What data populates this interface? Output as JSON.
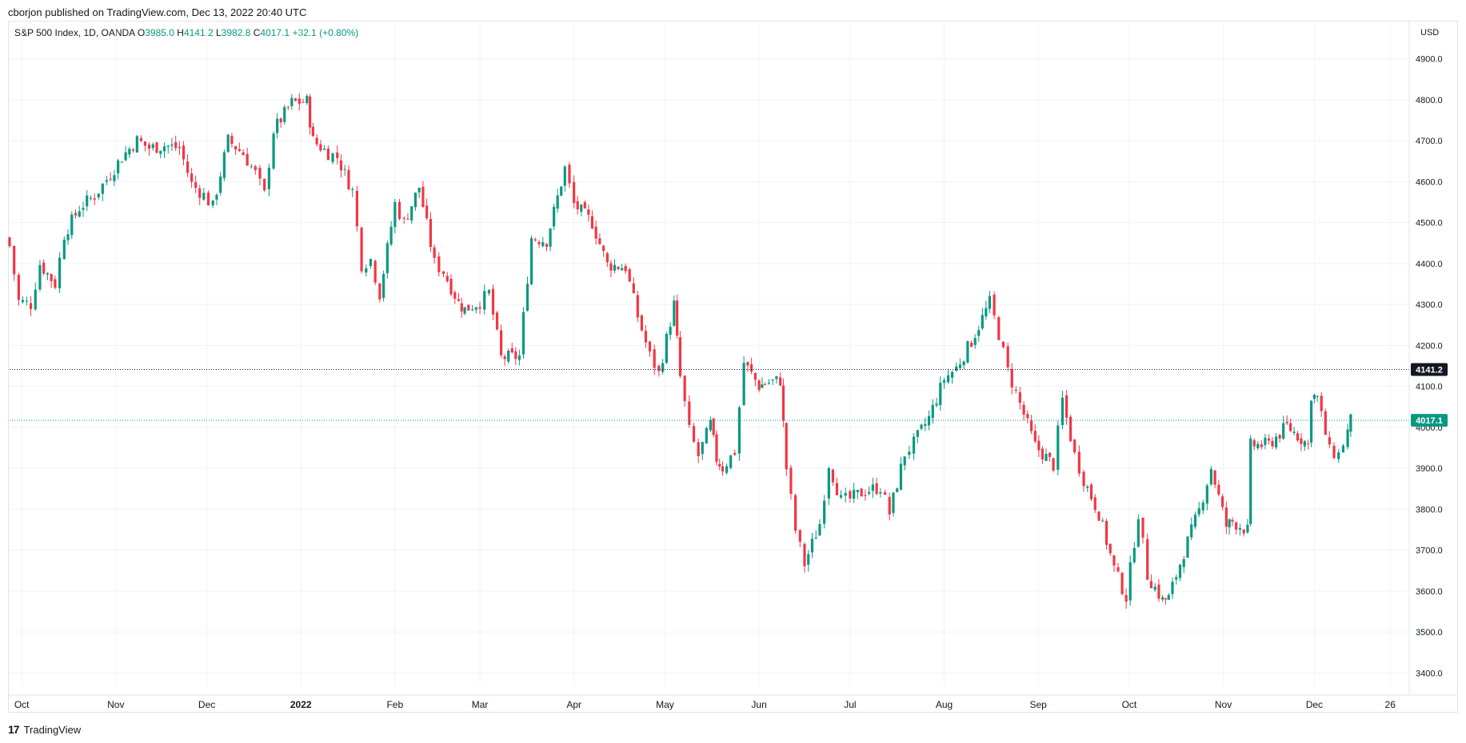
{
  "header": {
    "published": "cborjon published on TradingView.com, Dec 13, 2022 20:40 UTC"
  },
  "legend": {
    "symbol": "S&P 500 Index, 1D, OANDA",
    "o_label": "O",
    "o_value": "3985.0",
    "h_label": "H",
    "h_value": "4141.2",
    "l_label": "L",
    "l_value": "3982.8",
    "c_label": "C",
    "c_value": "4017.1",
    "change": "+32.1 (+0.80%)"
  },
  "footer": {
    "logo": "17",
    "brand": "TradingView"
  },
  "colors": {
    "up": "#089981",
    "down": "#f23645",
    "grid": "#f0f3fa",
    "axis_text": "#131722",
    "last_price": "#089981",
    "high_line": "#131722"
  },
  "chart_data": {
    "type": "candlestick",
    "currency": "USD",
    "ylim": [
      3350,
      4985
    ],
    "y_ticks": [
      "4900.0",
      "4800.0",
      "4700.0",
      "4600.0",
      "4500.0",
      "4400.0",
      "4300.0",
      "4200.0",
      "4100.0",
      "4000.0",
      "3900.0",
      "3800.0",
      "3700.0",
      "3600.0",
      "3500.0",
      "3400.0"
    ],
    "x_ticks": [
      "Oct",
      "Nov",
      "Dec",
      "2022",
      "Feb",
      "Mar",
      "Apr",
      "May",
      "Jun",
      "Jul",
      "Aug",
      "Sep",
      "Oct",
      "Nov",
      "Dec",
      "26"
    ],
    "x_range": [
      "2021-09-27",
      "2022-12-27"
    ],
    "x_tick_dates": [
      "2021-10-01",
      "2021-11-01",
      "2021-12-01",
      "2022-01-01",
      "2022-02-01",
      "2022-03-01",
      "2022-04-01",
      "2022-05-01",
      "2022-06-01",
      "2022-07-01",
      "2022-08-01",
      "2022-09-01",
      "2022-10-01",
      "2022-11-01",
      "2022-12-01",
      "2022-12-26"
    ],
    "last_price": "4017.1",
    "high_price": "4141.2",
    "closes": [
      [
        "2021-09-27",
        4443
      ],
      [
        "2021-09-30",
        4308
      ],
      [
        "2021-10-04",
        4300
      ],
      [
        "2021-10-07",
        4399
      ],
      [
        "2021-10-12",
        4350
      ],
      [
        "2021-10-15",
        4471
      ],
      [
        "2021-10-20",
        4536
      ],
      [
        "2021-10-25",
        4566
      ],
      [
        "2021-10-29",
        4605
      ],
      [
        "2021-11-03",
        4660
      ],
      [
        "2021-11-08",
        4701
      ],
      [
        "2021-11-12",
        4682
      ],
      [
        "2021-11-17",
        4688
      ],
      [
        "2021-11-22",
        4682
      ],
      [
        "2021-11-26",
        4594
      ],
      [
        "2021-11-30",
        4567
      ],
      [
        "2021-12-03",
        4538
      ],
      [
        "2021-12-08",
        4701
      ],
      [
        "2021-12-13",
        4668
      ],
      [
        "2021-12-17",
        4620
      ],
      [
        "2021-12-20",
        4568
      ],
      [
        "2021-12-23",
        4725
      ],
      [
        "2021-12-29",
        4793
      ],
      [
        "2022-01-03",
        4796
      ],
      [
        "2022-01-05",
        4700
      ],
      [
        "2022-01-10",
        4670
      ],
      [
        "2022-01-13",
        4660
      ],
      [
        "2022-01-18",
        4577
      ],
      [
        "2022-01-21",
        4398
      ],
      [
        "2022-01-24",
        4410
      ],
      [
        "2022-01-27",
        4326
      ],
      [
        "2022-02-01",
        4546
      ],
      [
        "2022-02-04",
        4500
      ],
      [
        "2022-02-09",
        4587
      ],
      [
        "2022-02-14",
        4401
      ],
      [
        "2022-02-17",
        4380
      ],
      [
        "2022-02-22",
        4304
      ],
      [
        "2022-02-24",
        4288
      ],
      [
        "2022-03-01",
        4306
      ],
      [
        "2022-03-04",
        4328
      ],
      [
        "2022-03-08",
        4170
      ],
      [
        "2022-03-14",
        4173
      ],
      [
        "2022-03-18",
        4463
      ],
      [
        "2022-03-23",
        4456
      ],
      [
        "2022-03-29",
        4632
      ],
      [
        "2022-04-01",
        4545
      ],
      [
        "2022-04-07",
        4500
      ],
      [
        "2022-04-12",
        4397
      ],
      [
        "2022-04-18",
        4391
      ],
      [
        "2022-04-22",
        4271
      ],
      [
        "2022-04-26",
        4175
      ],
      [
        "2022-04-29",
        4131
      ],
      [
        "2022-05-04",
        4300
      ],
      [
        "2022-05-06",
        4123
      ],
      [
        "2022-05-09",
        3991
      ],
      [
        "2022-05-12",
        3930
      ],
      [
        "2022-05-16",
        4008
      ],
      [
        "2022-05-18",
        3923
      ],
      [
        "2022-05-20",
        3901
      ],
      [
        "2022-05-24",
        3941
      ],
      [
        "2022-05-27",
        4158
      ],
      [
        "2022-06-01",
        4101
      ],
      [
        "2022-06-03",
        4108
      ],
      [
        "2022-06-08",
        4115
      ],
      [
        "2022-06-10",
        3900
      ],
      [
        "2022-06-13",
        3749
      ],
      [
        "2022-06-16",
        3666
      ],
      [
        "2022-06-21",
        3765
      ],
      [
        "2022-06-24",
        3911
      ],
      [
        "2022-06-28",
        3821
      ],
      [
        "2022-07-01",
        3825
      ],
      [
        "2022-07-06",
        3845
      ],
      [
        "2022-07-11",
        3854
      ],
      [
        "2022-07-14",
        3790
      ],
      [
        "2022-07-19",
        3936
      ],
      [
        "2022-07-22",
        3961
      ],
      [
        "2022-07-27",
        4023
      ],
      [
        "2022-08-01",
        4118
      ],
      [
        "2022-08-05",
        4145
      ],
      [
        "2022-08-10",
        4210
      ],
      [
        "2022-08-16",
        4305
      ],
      [
        "2022-08-19",
        4228
      ],
      [
        "2022-08-22",
        4137
      ],
      [
        "2022-08-26",
        4057
      ],
      [
        "2022-08-31",
        3955
      ],
      [
        "2022-09-06",
        3908
      ],
      [
        "2022-09-09",
        4067
      ],
      [
        "2022-09-13",
        3932
      ],
      [
        "2022-09-16",
        3873
      ],
      [
        "2022-09-21",
        3789
      ],
      [
        "2022-09-26",
        3655
      ],
      [
        "2022-09-30",
        3585
      ],
      [
        "2022-10-04",
        3790
      ],
      [
        "2022-10-07",
        3639
      ],
      [
        "2022-10-12",
        3577
      ],
      [
        "2022-10-14",
        3583
      ],
      [
        "2022-10-19",
        3695
      ],
      [
        "2022-10-24",
        3797
      ],
      [
        "2022-10-28",
        3901
      ],
      [
        "2022-11-02",
        3759
      ],
      [
        "2022-11-04",
        3770
      ],
      [
        "2022-11-09",
        3748
      ],
      [
        "2022-11-10",
        3956
      ],
      [
        "2022-11-16",
        3958
      ],
      [
        "2022-11-22",
        4003
      ],
      [
        "2022-11-29",
        3957
      ],
      [
        "2022-11-30",
        4080
      ],
      [
        "2022-12-02",
        4071
      ],
      [
        "2022-12-06",
        3941
      ],
      [
        "2022-12-09",
        3934
      ],
      [
        "2022-12-12",
        3990
      ],
      [
        "2022-12-13",
        4017
      ]
    ]
  }
}
